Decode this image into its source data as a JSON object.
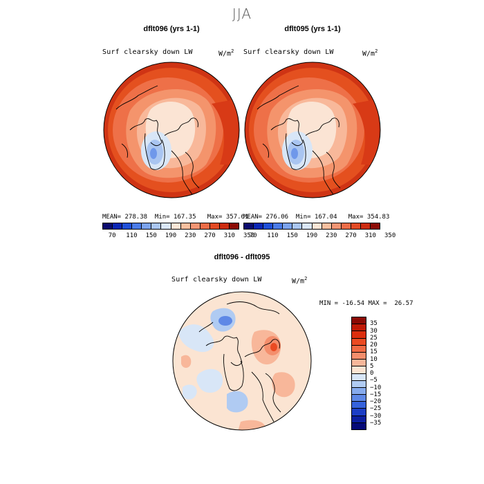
{
  "figure": {
    "season": "JJA",
    "variable_label": "Surf clearsky down LW",
    "units_base": "W/m",
    "units_exp": "2"
  },
  "panels": [
    {
      "title": "dflt096 (yrs 1-1)",
      "mean_label": "MEAN=",
      "mean": "278.38",
      "min_label": "Min=",
      "min": "167.35",
      "max_label": "Max=",
      "max": "357.61"
    },
    {
      "title": "dflt095 (yrs 1-1)",
      "mean_label": "MEAN=",
      "mean": "276.06",
      "min_label": "Min=",
      "min": "167.04",
      "max_label": "Max=",
      "max": "354.83"
    }
  ],
  "abs_colorbar": {
    "colors": [
      "#0a0a6e",
      "#0a26b4",
      "#1f4fd8",
      "#4a7be8",
      "#7ba3ee",
      "#aac6f2",
      "#d9e6f7",
      "#fbe6d6",
      "#f8bf9f",
      "#f29574",
      "#ec6c47",
      "#e24a24",
      "#cc2c10",
      "#8c0a04"
    ],
    "ticks": [
      "70",
      "110",
      "150",
      "190",
      "230",
      "270",
      "310",
      "350"
    ]
  },
  "diff_panel": {
    "title": "dflt096 - dflt095",
    "min_label": "MIN =",
    "min": "-16.54",
    "max_label": "MAX =",
    "max": "26.57"
  },
  "diff_colorbar": {
    "colors": [
      "#8c0a04",
      "#c01a06",
      "#dc2e0e",
      "#ea4a22",
      "#f06a44",
      "#f48e6c",
      "#f8b79a",
      "#fbe4d2",
      "#d8e6f7",
      "#b0cbf2",
      "#86aaed",
      "#5e88e6",
      "#3562dc",
      "#1c3ec6",
      "#0c1fa0",
      "#060a78"
    ],
    "labels": [
      "35",
      "30",
      "25",
      "20",
      "15",
      "10",
      "5",
      "0",
      "−5",
      "−10",
      "−15",
      "−20",
      "−25",
      "−30",
      "−35"
    ]
  }
}
